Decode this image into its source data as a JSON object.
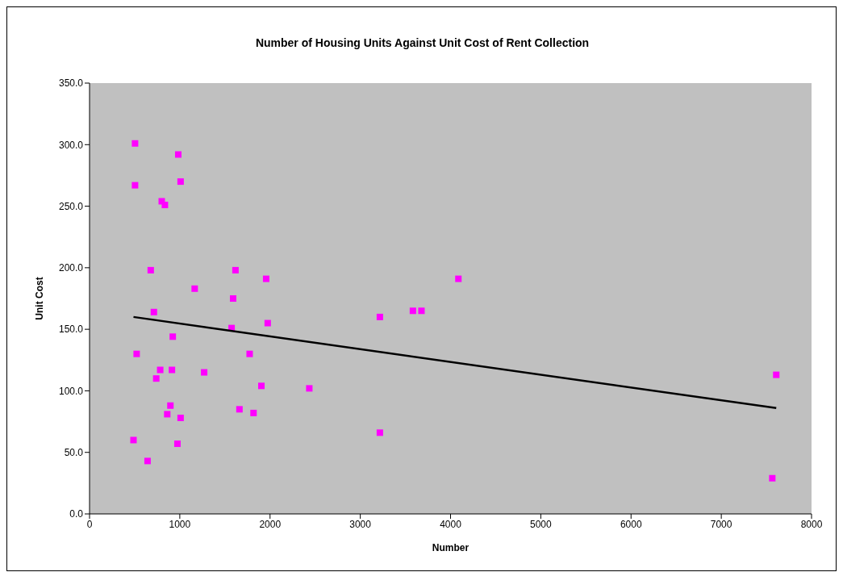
{
  "chart_data": {
    "type": "scatter",
    "title": "Number of Housing Units Against Unit Cost of Rent Collection",
    "xlabel": "Number",
    "ylabel": "Unit Cost",
    "xlim": [
      0,
      8000
    ],
    "xticks": [
      0,
      1000,
      2000,
      3000,
      4000,
      5000,
      6000,
      7000,
      8000
    ],
    "ylim": [
      0,
      350
    ],
    "yticks": [
      {
        "value": 0,
        "label": "0.0"
      },
      {
        "value": 50,
        "label": "50.0"
      },
      {
        "value": 100,
        "label": "100.0"
      },
      {
        "value": 150,
        "label": "150.0"
      },
      {
        "value": 200,
        "label": "200.0"
      },
      {
        "value": 250,
        "label": "250.0"
      },
      {
        "value": 300,
        "label": "300.0"
      },
      {
        "value": 350,
        "label": "350.0"
      }
    ],
    "grid": false,
    "series": [
      {
        "type": "scatter",
        "color": "#ff00ff",
        "marker": "square",
        "x": [
          504,
          504,
          983,
          1009,
          800,
          835,
          678,
          1617,
          1165,
          1957,
          4087,
          1591,
          713,
          3583,
          3678,
          3217,
          1974,
          1574,
          922,
          522,
          1774,
          783,
          913,
          739,
          1270,
          1904,
          2435,
          7609,
          896,
          1661,
          861,
          1817,
          1009,
          3217,
          487,
          974,
          643,
          7565
        ],
        "values": [
          301,
          267,
          292,
          270,
          254,
          251,
          198,
          198,
          183,
          191,
          191,
          175,
          164,
          165,
          165,
          160,
          155,
          151,
          144,
          130,
          130,
          117,
          117,
          110,
          115,
          104,
          102,
          113,
          88,
          85,
          81,
          82,
          78,
          66,
          60,
          57,
          43,
          29
        ]
      },
      {
        "type": "line",
        "color": "#000000",
        "marker": "none",
        "line_style": "solid",
        "x": [
          487,
          7609
        ],
        "values": [
          160,
          86
        ]
      }
    ]
  }
}
